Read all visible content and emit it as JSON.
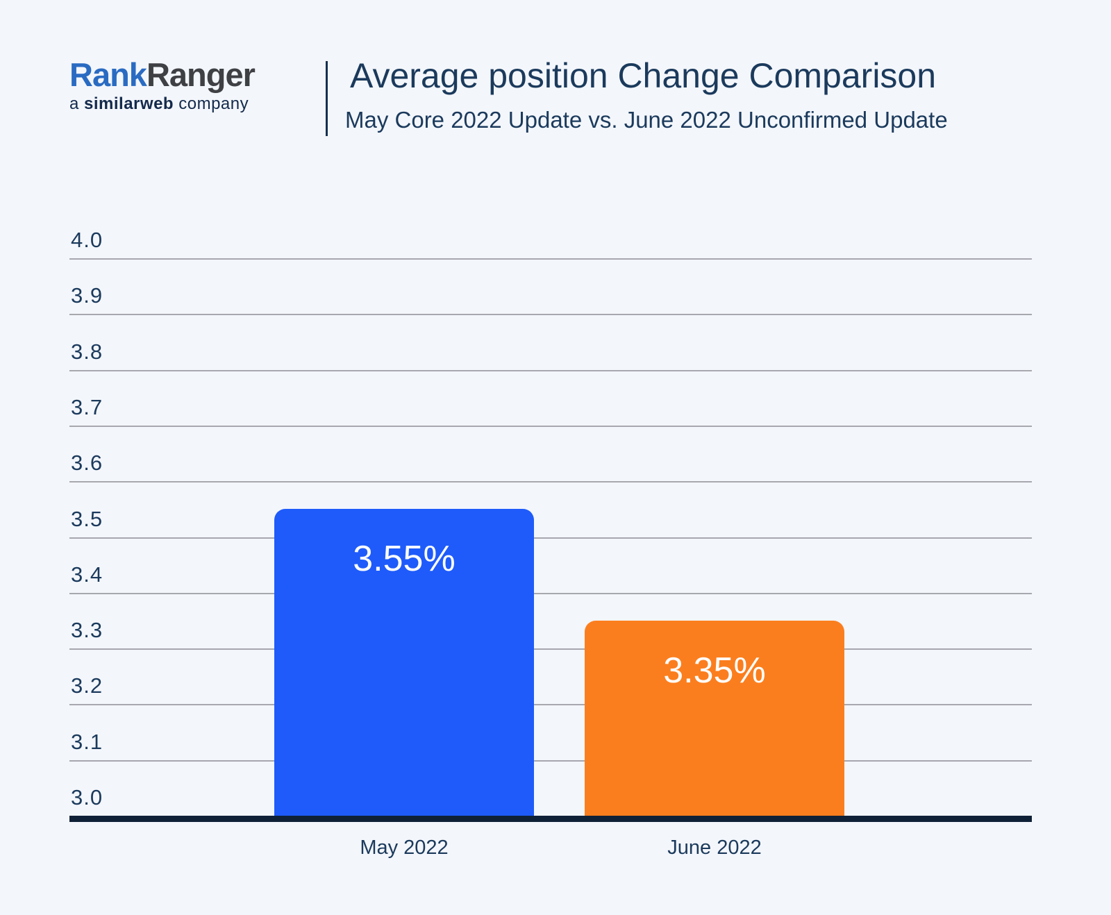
{
  "header": {
    "logo": {
      "name_part_blue": "Rank",
      "name_part_dark": "Ranger",
      "tagline_prefix": "a ",
      "tagline_bold": "similarweb",
      "tagline_suffix": " company"
    },
    "title": "Average position Change Comparison",
    "subtitle": "May Core 2022 Update vs. June 2022 Unconfirmed Update"
  },
  "chart_data": {
    "type": "bar",
    "title": "Average position Change Comparison",
    "subtitle": "May Core 2022 Update vs. June 2022 Unconfirmed Update",
    "categories": [
      "May 2022",
      "June 2022"
    ],
    "values": [
      3.55,
      3.35
    ],
    "value_labels": [
      "3.55%",
      "3.35%"
    ],
    "bar_colors": [
      "#1e5bfa",
      "#fb7e1e"
    ],
    "xlabel": "",
    "ylabel": "",
    "ylim": [
      3.0,
      4.0
    ],
    "yticks": [
      4.0,
      3.9,
      3.8,
      3.7,
      3.6,
      3.5,
      3.4,
      3.3,
      3.2,
      3.1,
      3.0
    ],
    "ytick_decimals": 1,
    "grid": true,
    "legend": false
  },
  "colors": {
    "background": "#f3f6fb",
    "title_text": "#1b3a5c",
    "gridline": "#a7a7af",
    "axis": "#0f2137",
    "bar_blue": "#1e5bfa",
    "bar_orange": "#fb7e1e",
    "logo_blue": "#2a6bc2",
    "logo_dark": "#3e4043",
    "tagline_navy": "#13294b"
  }
}
